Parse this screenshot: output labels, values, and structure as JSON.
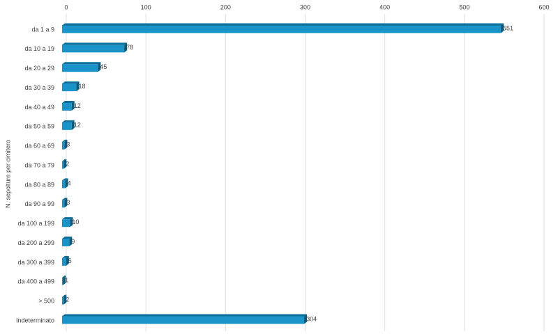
{
  "chart_data": {
    "type": "bar",
    "orientation": "horizontal",
    "y_label": "N. sepolture per cimitero",
    "categories": [
      "da 1 a 9",
      "da 10 a 19",
      "da 20 a 29",
      "da 30 a 39",
      "da 40 a 49",
      "da 50 a 59",
      "da 60 a 69",
      "da 70 a 79",
      "da 80 a 89",
      "da 90 a 99",
      "da 100 a 199",
      "da 200 a 299",
      "da 300 a 399",
      "da 400 a 499",
      "> 500",
      "Indeterminato"
    ],
    "values": [
      551,
      78,
      45,
      18,
      12,
      12,
      3,
      2,
      4,
      3,
      10,
      9,
      5,
      1,
      2,
      304
    ],
    "color": "#1a93c9",
    "xlim": [
      0,
      600
    ],
    "xticks": [
      0,
      100,
      200,
      300,
      400,
      500,
      600
    ],
    "grid": true
  }
}
